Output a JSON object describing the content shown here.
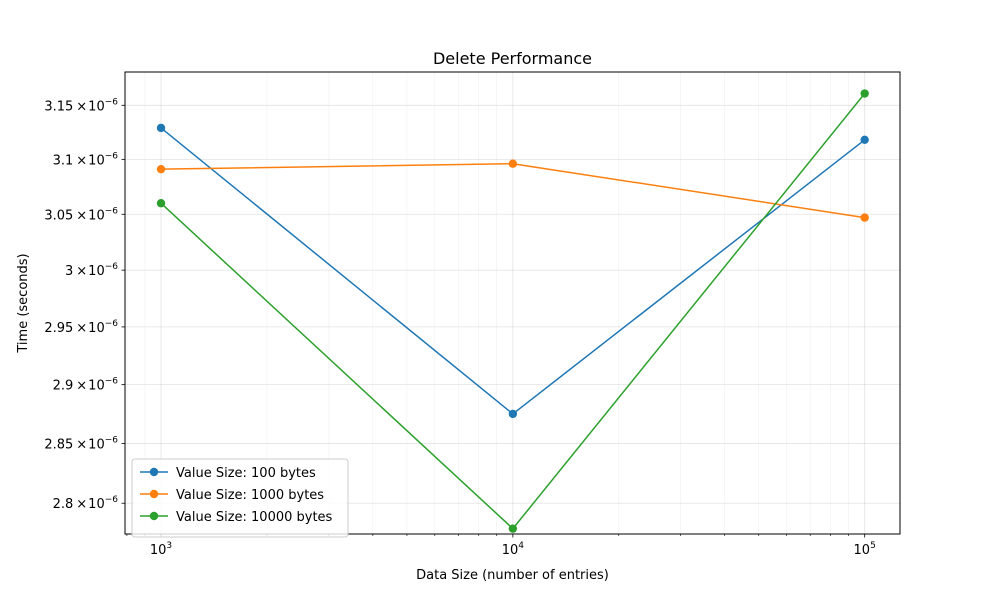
{
  "chart_data": {
    "type": "line",
    "title": "Delete Performance",
    "xlabel": "Data Size (number of entries)",
    "ylabel": "Time (seconds)",
    "xscale": "log",
    "yscale": "log",
    "x": [
      1000,
      10000,
      100000
    ],
    "xlim": [
      790,
      126000
    ],
    "ylim": [
      2.7746e-06,
      3.1812e-06
    ],
    "x_tick_labels": [
      {
        "value": 1000,
        "base": "10",
        "exp": "3"
      },
      {
        "value": 10000,
        "base": "10",
        "exp": "4"
      },
      {
        "value": 100000,
        "base": "10",
        "exp": "5"
      }
    ],
    "y_tick_labels": [
      {
        "value": 2.8e-06,
        "mantissa": "2.8",
        "times": "×",
        "base": "10",
        "exp": "−6"
      },
      {
        "value": 2.85e-06,
        "mantissa": "2.85",
        "times": "×",
        "base": "10",
        "exp": "−6"
      },
      {
        "value": 2.9e-06,
        "mantissa": "2.9",
        "times": "×",
        "base": "10",
        "exp": "−6"
      },
      {
        "value": 2.95e-06,
        "mantissa": "2.95",
        "times": "×",
        "base": "10",
        "exp": "−6"
      },
      {
        "value": 3e-06,
        "mantissa": "3",
        "times": "×",
        "base": "10",
        "exp": "−6"
      },
      {
        "value": 3.05e-06,
        "mantissa": "3.05",
        "times": "×",
        "base": "10",
        "exp": "−6"
      },
      {
        "value": 3.1e-06,
        "mantissa": "3.1",
        "times": "×",
        "base": "10",
        "exp": "−6"
      },
      {
        "value": 3.15e-06,
        "mantissa": "3.15",
        "times": "×",
        "base": "10",
        "exp": "−6"
      }
    ],
    "series": [
      {
        "name": "Value Size: 100 bytes",
        "color": "#1f77b4",
        "values": [
          3.129e-06,
          2.875e-06,
          3.118e-06
        ]
      },
      {
        "name": "Value Size: 1000 bytes",
        "color": "#ff7f0e",
        "values": [
          3.091e-06,
          3.096e-06,
          3.047e-06
        ]
      },
      {
        "name": "Value Size: 10000 bytes",
        "color": "#2ca02c",
        "values": [
          3.06e-06,
          2.779e-06,
          3.161e-06
        ]
      }
    ],
    "grid": true,
    "legend_position": "lower-left",
    "marker": "circle"
  }
}
